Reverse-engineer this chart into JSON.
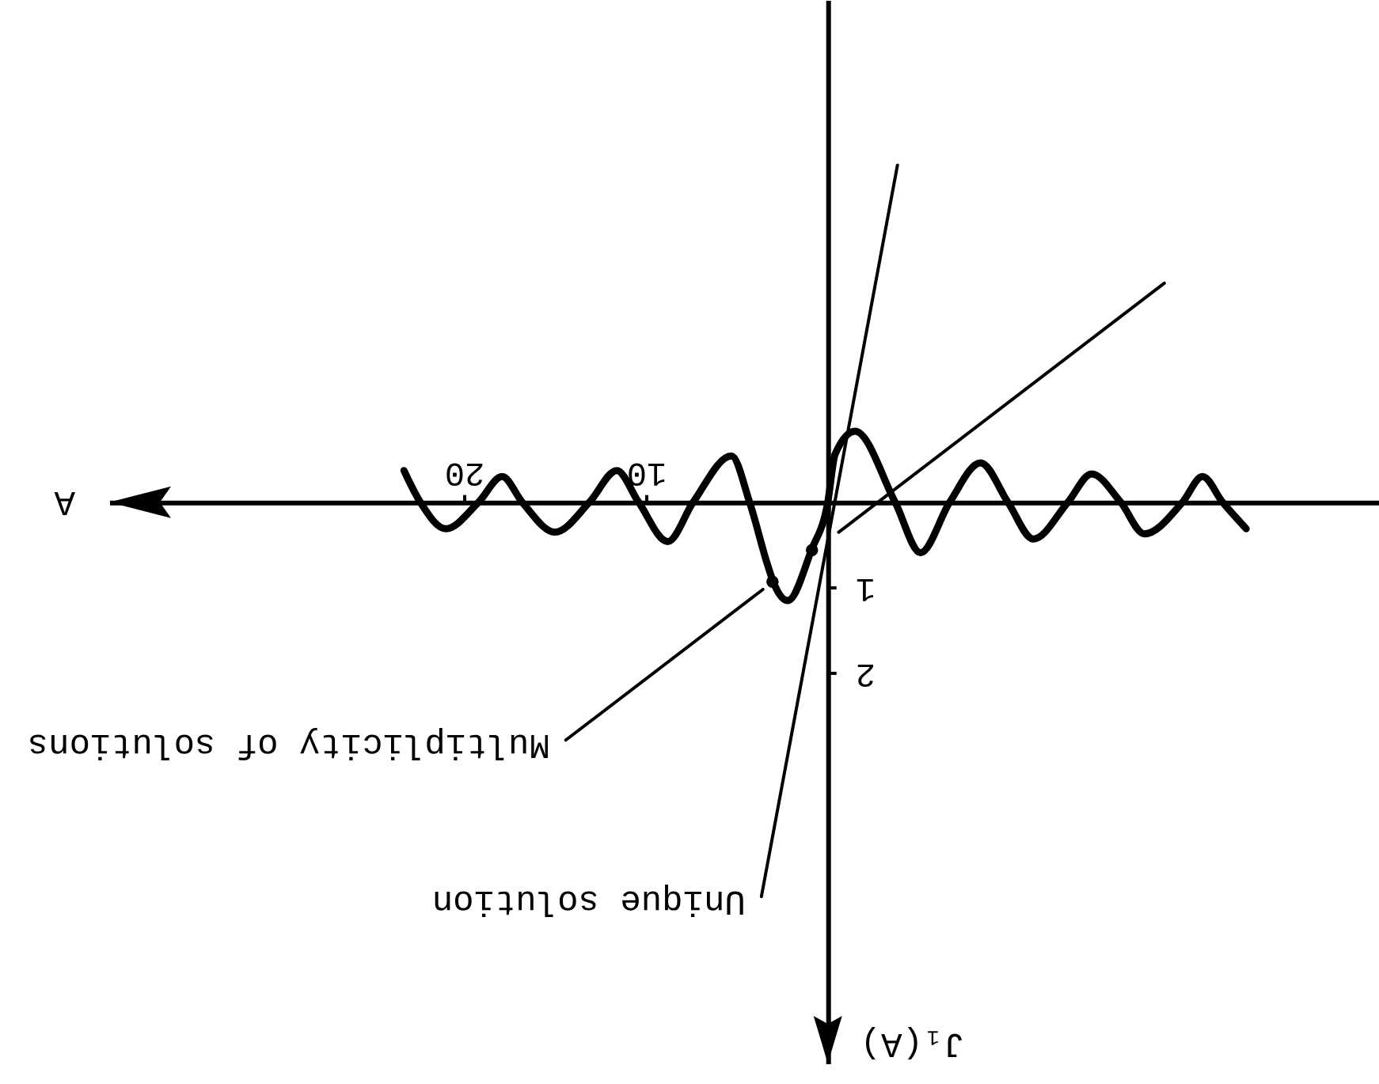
{
  "chart_data": {
    "type": "line",
    "xlabel": "A",
    "ylabel": "J₁(A)",
    "xlim": [
      39.5,
      -30.3
    ],
    "ylim": [
      6.56,
      -5.87
    ],
    "xticks": [
      10,
      20
    ],
    "yticks": [
      1,
      2
    ],
    "series": [
      {
        "color": "#000000",
        "x": [
          -23.0,
          -21.7,
          -20.6,
          -19.5,
          -17.4,
          -16.1,
          -14.5,
          -13.2,
          -11.3,
          -9.9,
          -8.4,
          -6.7,
          -5.1,
          -3.7,
          -1.5,
          -0.4,
          0,
          0.9,
          2.2,
          3.0,
          3.3,
          4.3,
          5.3,
          7.4,
          8.8,
          10.4,
          11.6,
          13.1,
          15.0,
          16.8,
          17.9,
          19.2,
          21.0,
          22.4,
          23.3
        ],
        "values": [
          0.31,
          0,
          -0.3,
          0,
          0.37,
          0,
          -0.33,
          0,
          0.43,
          0,
          -0.46,
          0,
          0.59,
          0,
          -0.83,
          -0.56,
          0,
          0.56,
          1.15,
          0.93,
          0.74,
          0,
          -0.54,
          0,
          0.46,
          0,
          -0.37,
          0,
          0.35,
          0,
          -0.3,
          0,
          0.31,
          0,
          -0.37
        ]
      },
      {
        "name": "Unique solution",
        "color": "#000000",
        "x": [
          -3.83,
          3.65
        ],
        "values": [
          -3.94,
          4.61
        ]
      },
      {
        "name": "Multiplicity of solutions",
        "color": "#000000",
        "x": [
          -18.5,
          -0.6,
          1.5,
          3.57,
          14.4
        ],
        "values": [
          -2.56,
          0.35,
          null,
          1.02,
          2.78
        ]
      },
      {
        "type": "scatter",
        "marker": "circle",
        "color": "#000000",
        "x": [
          0.87,
          3.04
        ],
        "values": [
          0.56,
          0.93
        ]
      }
    ]
  }
}
